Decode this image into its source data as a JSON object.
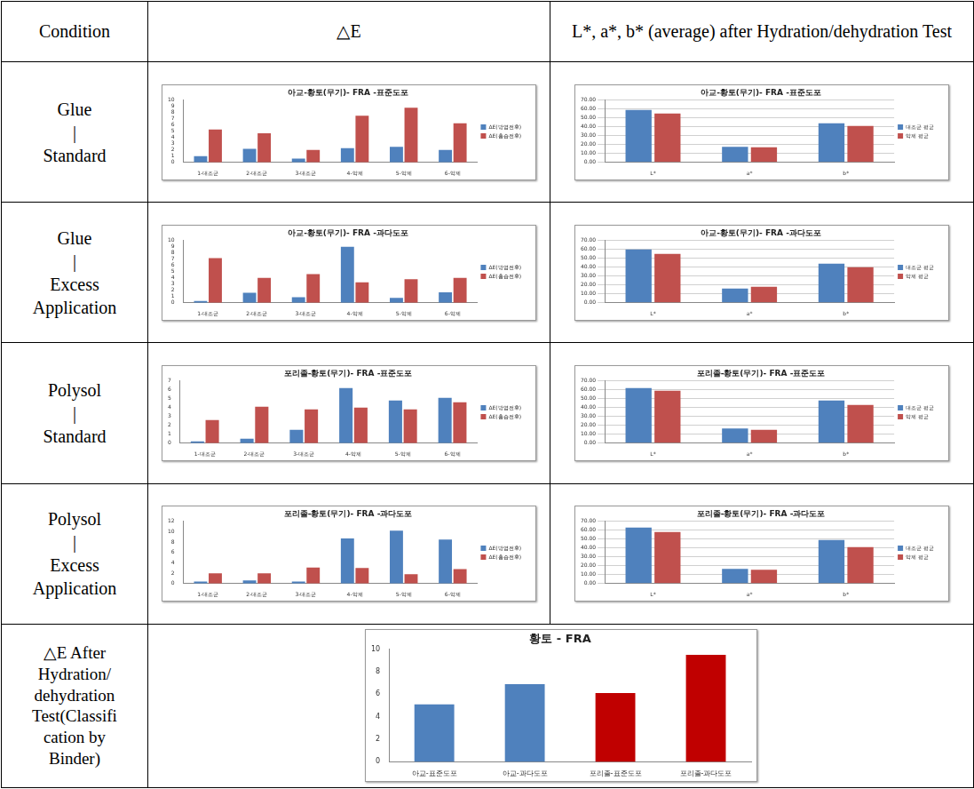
{
  "table": {
    "header": [
      "Condition",
      "△E",
      "L*, a*, b* (average) after Hydration/dehydration Test"
    ],
    "conditions": [
      [
        "Glue",
        "|",
        "Standard"
      ],
      [
        "Glue",
        "|",
        "Excess",
        "Application"
      ],
      [
        "Polysol",
        "|",
        "Standard"
      ],
      [
        "Polysol",
        "|",
        "Excess",
        "Application"
      ],
      [
        "△E After",
        "Hydration/",
        "dehydration",
        "Test(Classifi",
        "cation by",
        "Binder)"
      ]
    ]
  },
  "chart_data": [
    {
      "type": "bar",
      "title": "아교-황토(무기)- FRA -표준도포",
      "categories": [
        "1-대조군",
        "2-대조군",
        "3-대조군",
        "4-약제",
        "5-약제",
        "6-약제"
      ],
      "series": [
        {
          "name": "ΔE(방염전후)",
          "color": "#4F81BD",
          "values": [
            1.0,
            2.2,
            0.6,
            2.3,
            2.5,
            2.0
          ]
        },
        {
          "name": "ΔE(흡습전후)",
          "color": "#C0504D",
          "values": [
            5.3,
            4.7,
            2.0,
            7.5,
            8.8,
            6.3
          ]
        }
      ],
      "ylim": [
        0,
        10
      ],
      "yticks": [
        0,
        1,
        2,
        3,
        4,
        5,
        6,
        7,
        8,
        9,
        10
      ],
      "grid": false,
      "legend": "right"
    },
    {
      "type": "bar",
      "title": "아교-황토(무기)- FRA -표준도포",
      "categories": [
        "L*",
        "a*",
        "b*"
      ],
      "series": [
        {
          "name": "대조군 평균",
          "color": "#4F81BD",
          "values": [
            59,
            17.5,
            44
          ]
        },
        {
          "name": "약제 평균",
          "color": "#C0504D",
          "values": [
            55,
            17,
            41
          ]
        }
      ],
      "ylim": [
        0,
        70
      ],
      "yticks": [
        {
          "value": 0,
          "label": "0.00"
        },
        {
          "value": 10,
          "label": "10.00"
        },
        {
          "value": 20,
          "label": "20.00"
        },
        {
          "value": 30,
          "label": "30.00"
        },
        {
          "value": 40,
          "label": "40.00"
        },
        {
          "value": 50,
          "label": "50.00"
        },
        {
          "value": 60,
          "label": "60.00"
        },
        {
          "value": 70,
          "label": "70.00"
        }
      ],
      "grid": true,
      "legend": "right"
    },
    {
      "type": "bar",
      "title": "아교-황토(무기)- FRA -과다도포",
      "categories": [
        "1-대조군",
        "2-대조군",
        "3-대조군",
        "4-약제",
        "5-약제",
        "6-약제"
      ],
      "series": [
        {
          "name": "ΔE(방염전후)",
          "color": "#4F81BD",
          "values": [
            0.3,
            1.6,
            0.9,
            9.0,
            0.8,
            1.7
          ]
        },
        {
          "name": "ΔE(흡습전후)",
          "color": "#C0504D",
          "values": [
            7.2,
            4.0,
            4.6,
            3.3,
            3.8,
            4.0
          ]
        }
      ],
      "ylim": [
        0,
        10
      ],
      "yticks": [
        0,
        1,
        2,
        3,
        4,
        5,
        6,
        7,
        8,
        9,
        10
      ],
      "grid": false,
      "legend": "right"
    },
    {
      "type": "bar",
      "title": "아교-황토(무기)- FRA -과다도포",
      "categories": [
        "L*",
        "a*",
        "b*"
      ],
      "series": [
        {
          "name": "대조군 평균",
          "color": "#4F81BD",
          "values": [
            60,
            16,
            44
          ]
        },
        {
          "name": "약제 평균",
          "color": "#C0504D",
          "values": [
            55,
            18,
            40
          ]
        }
      ],
      "ylim": [
        0,
        70
      ],
      "yticks": [
        {
          "value": 0,
          "label": "0.00"
        },
        {
          "value": 10,
          "label": "10.00"
        },
        {
          "value": 20,
          "label": "20.00"
        },
        {
          "value": 30,
          "label": "30.00"
        },
        {
          "value": 40,
          "label": "40.00"
        },
        {
          "value": 50,
          "label": "50.00"
        },
        {
          "value": 60,
          "label": "60.00"
        },
        {
          "value": 70,
          "label": "70.00"
        }
      ],
      "grid": true,
      "legend": "right"
    },
    {
      "type": "bar",
      "title": "포리졸-황토(무기)- FRA -표준도포",
      "categories": [
        "1-대조군",
        "2-대조군",
        "3-대조군",
        "4-약제",
        "5-약제",
        "6-약제"
      ],
      "series": [
        {
          "name": "ΔE(방염전후)",
          "color": "#4F81BD",
          "values": [
            0.2,
            0.5,
            1.5,
            6.2,
            4.8,
            5.1
          ]
        },
        {
          "name": "ΔE(흡습전후)",
          "color": "#C0504D",
          "values": [
            2.6,
            4.1,
            3.8,
            4.0,
            3.8,
            4.6
          ]
        }
      ],
      "ylim": [
        0,
        7
      ],
      "yticks": [
        0,
        1,
        2,
        3,
        4,
        5,
        6,
        7
      ],
      "grid": false,
      "legend": "right"
    },
    {
      "type": "bar",
      "title": "포리졸-황토(무기)- FRA -표준도포",
      "categories": [
        "L*",
        "a*",
        "b*"
      ],
      "series": [
        {
          "name": "대조군 평균",
          "color": "#4F81BD",
          "values": [
            62,
            16.5,
            48
          ]
        },
        {
          "name": "약제 평균",
          "color": "#C0504D",
          "values": [
            59,
            15,
            43
          ]
        }
      ],
      "ylim": [
        0,
        70
      ],
      "yticks": [
        {
          "value": 0,
          "label": "0.00"
        },
        {
          "value": 10,
          "label": "10.00"
        },
        {
          "value": 20,
          "label": "20.00"
        },
        {
          "value": 30,
          "label": "30.00"
        },
        {
          "value": 40,
          "label": "40.00"
        },
        {
          "value": 50,
          "label": "50.00"
        },
        {
          "value": 60,
          "label": "60.00"
        },
        {
          "value": 70,
          "label": "70.00"
        }
      ],
      "grid": true,
      "legend": "right"
    },
    {
      "type": "bar",
      "title": "포리졸-황토(무기)- FRA -과다도포",
      "categories": [
        "1-대조군",
        "2-대조군",
        "3-대조군",
        "4-약제",
        "5-약제",
        "6-약제"
      ],
      "series": [
        {
          "name": "ΔE(방염전후)",
          "color": "#4F81BD",
          "values": [
            0.4,
            0.6,
            0.4,
            8.7,
            10.2,
            8.5
          ]
        },
        {
          "name": "ΔE(흡습전후)",
          "color": "#C0504D",
          "values": [
            2.0,
            2.0,
            3.1,
            3.0,
            1.8,
            2.8
          ]
        }
      ],
      "ylim": [
        0,
        12
      ],
      "yticks": [
        0,
        2,
        4,
        6,
        8,
        10,
        12
      ],
      "grid": false,
      "legend": "right"
    },
    {
      "type": "bar",
      "title": "포리졸-황토(무기)- FRA -과다도포",
      "categories": [
        "L*",
        "a*",
        "b*"
      ],
      "series": [
        {
          "name": "대조군 평균",
          "color": "#4F81BD",
          "values": [
            63,
            16.5,
            49
          ]
        },
        {
          "name": "약제 평균",
          "color": "#C0504D",
          "values": [
            58,
            15.5,
            41
          ]
        }
      ],
      "ylim": [
        0,
        70
      ],
      "yticks": [
        {
          "value": 0,
          "label": "0.00"
        },
        {
          "value": 10,
          "label": "10.00"
        },
        {
          "value": 20,
          "label": "20.00"
        },
        {
          "value": 30,
          "label": "30.00"
        },
        {
          "value": 40,
          "label": "40.00"
        },
        {
          "value": 50,
          "label": "50.00"
        },
        {
          "value": 60,
          "label": "60.00"
        },
        {
          "value": 70,
          "label": "70.00"
        }
      ],
      "grid": true,
      "legend": "right"
    },
    {
      "type": "bar",
      "title": "황토 - FRA",
      "categories": [
        "아교-표준도포",
        "아교-과다도포",
        "포리졸-표준도포",
        "포리졸-과다도포"
      ],
      "values": [
        5.1,
        6.9,
        6.1,
        9.5
      ],
      "colors": [
        "#4F81BD",
        "#4F81BD",
        "#C00000",
        "#C00000"
      ],
      "ylim": [
        0,
        10
      ],
      "yticks": [
        0,
        2,
        4,
        6,
        8,
        10
      ],
      "grid": false
    }
  ]
}
